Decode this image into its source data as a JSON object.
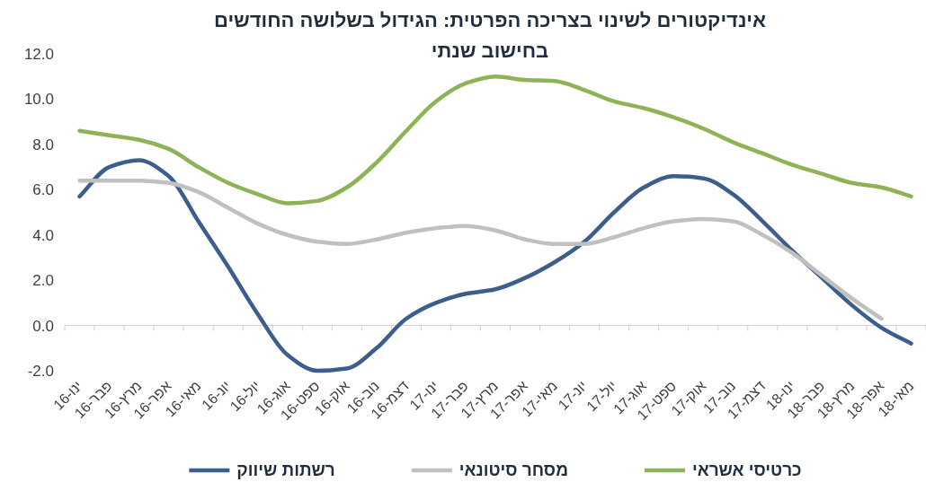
{
  "chart_data": {
    "type": "line",
    "title": "אינדיקטורים לשינוי בצריכה הפרטית: הגידול בשלושה החודשים בחישוב שנתי",
    "categories": [
      "ינו-16",
      "פבר-16",
      "מרץ-16",
      "אפר-16",
      "מאי-16",
      "יונ-16",
      "יול-16",
      "אוג-16",
      "ספט-16",
      "אוק-16",
      "נוב-16",
      "דצמ-16",
      "ינו-17",
      "פבר-17",
      "מרץ-17",
      "אפר-17",
      "מאי-17",
      "יונ-17",
      "יול-17",
      "אוג-17",
      "ספט-17",
      "אוק-17",
      "נוב-17",
      "דצמ-17",
      "ינו-18",
      "פבר-18",
      "מרץ-18",
      "אפר-18",
      "מאי-18"
    ],
    "series": [
      {
        "name": "רשתות שיווק",
        "color": "#3b5e8c",
        "values": [
          5.7,
          7.0,
          7.3,
          6.6,
          4.6,
          2.6,
          0.5,
          -1.3,
          -2.0,
          -1.9,
          -1.0,
          0.3,
          1.0,
          1.4,
          1.6,
          2.1,
          2.8,
          3.7,
          5.0,
          6.1,
          6.6,
          6.5,
          5.8,
          4.6,
          3.3,
          2.1,
          0.9,
          -0.1,
          -0.8
        ]
      },
      {
        "name": "מסחר סיטונאי",
        "color": "#c0c0c0",
        "values": [
          6.4,
          6.4,
          6.4,
          6.3,
          5.9,
          5.2,
          4.5,
          4.0,
          3.7,
          3.6,
          3.8,
          4.1,
          4.3,
          4.4,
          4.2,
          3.8,
          3.6,
          3.6,
          3.9,
          4.3,
          4.6,
          4.7,
          4.6,
          4.0,
          3.2,
          2.2,
          1.2,
          0.3,
          null
        ]
      },
      {
        "name": "כרטיסי אשראי",
        "color": "#8db356",
        "values": [
          8.6,
          8.4,
          8.2,
          7.8,
          7.0,
          6.3,
          5.8,
          5.4,
          5.5,
          6.1,
          7.2,
          8.6,
          9.9,
          10.7,
          11.0,
          10.85,
          10.8,
          10.4,
          9.9,
          9.6,
          9.2,
          8.7,
          8.1,
          7.6,
          7.1,
          6.7,
          6.3,
          6.1,
          5.7
        ]
      }
    ],
    "ylim": [
      -2,
      12
    ],
    "yticks": [
      {
        "value": -2,
        "label": "-2.0"
      },
      {
        "value": 0,
        "label": "0.0"
      },
      {
        "value": 2,
        "label": "2.0"
      },
      {
        "value": 4,
        "label": "4.0"
      },
      {
        "value": 6,
        "label": "6.0"
      },
      {
        "value": 8,
        "label": "8.0"
      },
      {
        "value": 10,
        "label": "10.0"
      },
      {
        "value": 12,
        "label": "12.0"
      }
    ],
    "legend": "bottom",
    "marker": "none",
    "line_style": "solid"
  }
}
